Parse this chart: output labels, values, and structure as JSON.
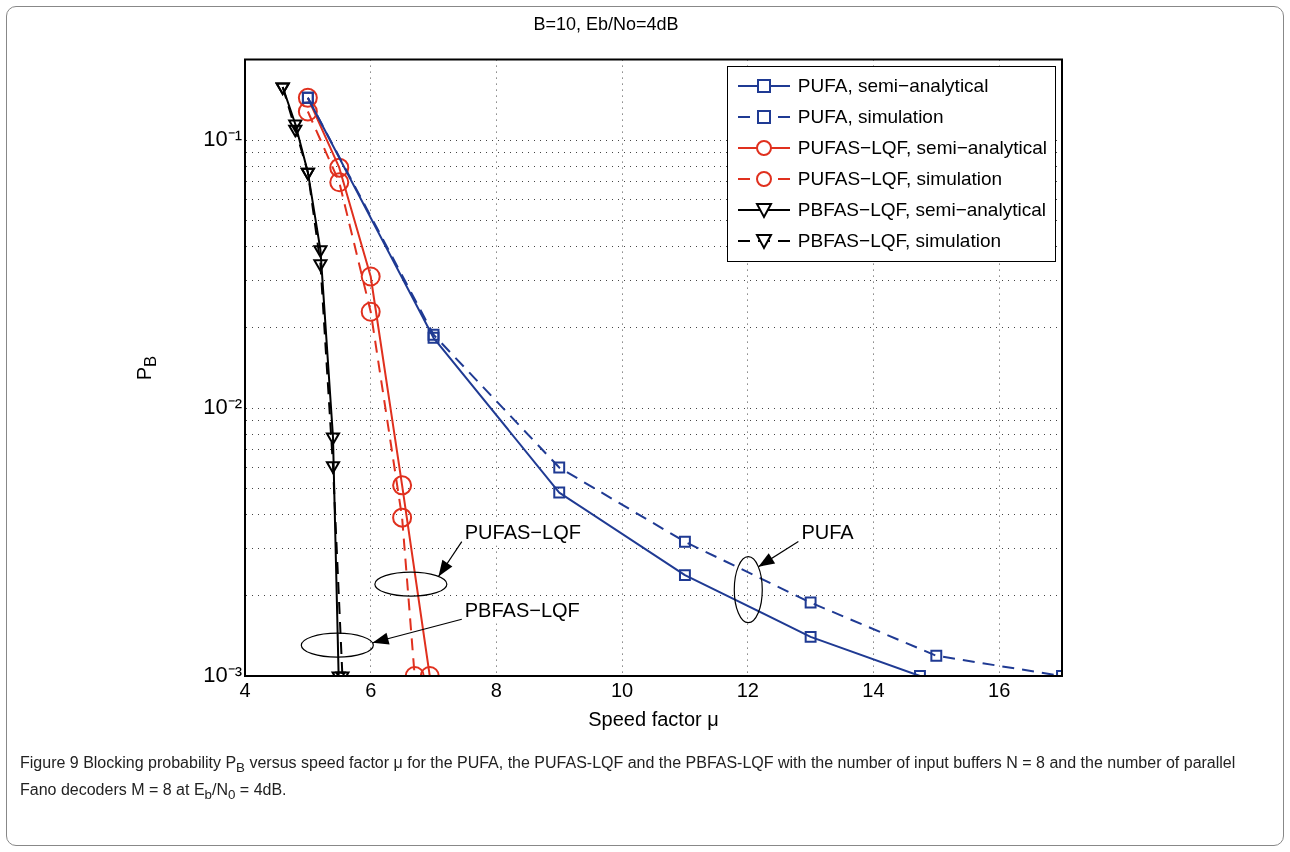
{
  "chart_data": {
    "type": "line",
    "title": "B=10, Eb/No=4dB",
    "xlabel": "Speed factor μ",
    "ylabel": "P$_{B}$",
    "log": "y",
    "grid": true,
    "legend": "top right",
    "xlim": [
      4,
      17
    ],
    "xticks": [
      4,
      6,
      8,
      10,
      12,
      14,
      16
    ],
    "ylim": [
      0.001,
      0.2
    ],
    "yticks": [
      {
        "value": 0.001,
        "label": "10⁻³"
      },
      {
        "value": 0.002,
        "label": null
      },
      {
        "value": 0.003,
        "label": null
      },
      {
        "value": 0.004,
        "label": null
      },
      {
        "value": 0.005,
        "label": null
      },
      {
        "value": 0.006,
        "label": null
      },
      {
        "value": 0.007,
        "label": null
      },
      {
        "value": 0.008,
        "label": null
      },
      {
        "value": 0.009,
        "label": null
      },
      {
        "value": 0.01,
        "label": "10⁻²"
      },
      {
        "value": 0.02,
        "label": null
      },
      {
        "value": 0.03,
        "label": null
      },
      {
        "value": 0.04,
        "label": null
      },
      {
        "value": 0.05,
        "label": null
      },
      {
        "value": 0.06,
        "label": null
      },
      {
        "value": 0.07,
        "label": null
      },
      {
        "value": 0.08,
        "label": null
      },
      {
        "value": 0.09,
        "label": null
      },
      {
        "value": 0.1,
        "label": "10⁻¹"
      },
      {
        "value": 0.2,
        "label": null
      }
    ],
    "series": [
      {
        "name": "PUFA, semi−analytical",
        "color": "#1f3a93",
        "marker": "square",
        "line_style": "solid",
        "x": [
          5,
          7,
          9,
          11,
          13,
          14.74
        ],
        "values": [
          0.144,
          0.0183,
          0.00484,
          0.00238,
          0.0014,
          0.001
        ]
      },
      {
        "name": "PUFA, simulation",
        "color": "#1f3a93",
        "marker": "square",
        "line_style": "dashed",
        "x": [
          5,
          7,
          9,
          11,
          13,
          15,
          17
        ],
        "values": [
          0.144,
          0.0188,
          0.006,
          0.00317,
          0.00188,
          0.00119,
          0.001
        ]
      },
      {
        "name": "PUFAS−LQF, semi−analytical",
        "color": "#e0301e",
        "marker": "circle",
        "line_style": "solid",
        "x": [
          5,
          5.5,
          6,
          6.5,
          6.94
        ],
        "values": [
          0.144,
          0.079,
          0.031,
          0.00515,
          0.001
        ]
      },
      {
        "name": "PUFAS−LQF, simulation",
        "color": "#e0301e",
        "marker": "circle",
        "line_style": "dashed",
        "x": [
          5,
          5.5,
          6,
          6.5,
          6.7
        ],
        "values": [
          0.128,
          0.0697,
          0.0229,
          0.0039,
          0.001
        ]
      },
      {
        "name": "PBFAS−LQF, semi−analytical",
        "color": "#000000",
        "marker": "triangle",
        "line_style": "solid",
        "x": [
          4.6,
          4.8,
          5,
          5.2,
          5.4,
          5.49
        ],
        "values": [
          0.158,
          0.115,
          0.076,
          0.039,
          0.0078,
          0.001
        ]
      },
      {
        "name": "PBFAS−LQF, simulation",
        "color": "#000000",
        "marker": "triangle",
        "line_style": "dashed",
        "x": [
          4.6,
          4.8,
          5,
          5.2,
          5.4,
          5.55
        ],
        "values": [
          0.158,
          0.11,
          0.076,
          0.0346,
          0.0061,
          0.001
        ]
      }
    ],
    "annotations": [
      "PUFAS−LQF",
      "PBFAS−LQF",
      "PUFA",
      "Figure 9 Blocking probability P$_{B}$ versus speed factor μ for the PUFA, the PUFAS-LQF and the PBFAS-LQF with the number of input buffers N = 8 and the number of parallel Fano decoders M = 8 at E$_{b}$/N$_{0}$ = 4dB."
    ]
  }
}
